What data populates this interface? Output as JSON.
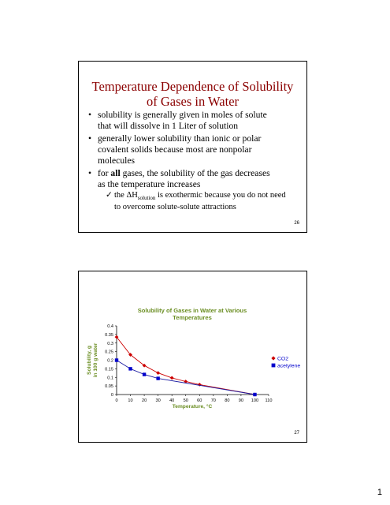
{
  "page_number": "1",
  "slide1": {
    "title_line1": "Temperature Dependence of Solubility",
    "title_line2": "of Gases in Water",
    "bullets": [
      {
        "line1": "solubility is generally given in moles of solute",
        "line2": "that will dissolve in 1 Liter of solution"
      },
      {
        "line1": "generally lower solubility than ionic or polar",
        "line2": "covalent solids because most are nonpolar",
        "line3": "molecules"
      },
      {
        "line1_pre": "for ",
        "line1_bold": "all",
        "line1_post": " gases, the solubility of the gas decreases",
        "line2": "as the temperature increases"
      }
    ],
    "sub_bullet": {
      "pre": "the ",
      "delta_h": "ΔH",
      "subscript": "solution",
      "post": " is exothermic because you do not need",
      "line2": "to overcome solute-solute attractions"
    },
    "slide_number": "26"
  },
  "slide2": {
    "slide_number": "27"
  },
  "chart_data": {
    "type": "line",
    "title": "Solubility of Gases in Water at Various Temperatures",
    "title_line1": "Solubility of Gases in Water at Various",
    "title_line2": "Temperatures",
    "xlabel": "Temperature, °C",
    "ylabel_line1": "Solubility, g",
    "ylabel_line2": "in 100 g water",
    "xlim": [
      0,
      110
    ],
    "ylim": [
      0,
      0.4
    ],
    "x_ticks": [
      "0",
      "10",
      "20",
      "30",
      "40",
      "50",
      "60",
      "70",
      "80",
      "90",
      "100",
      "110"
    ],
    "y_ticks": [
      "0",
      "0.05",
      "0.1",
      "0.15",
      "0.2",
      "0.25",
      "0.3",
      "0.35",
      "0.4"
    ],
    "grid": false,
    "legend_position": "right",
    "series": [
      {
        "name": "CO2",
        "color": "#cc0000",
        "marker": "diamond",
        "line_color": "#cc0000",
        "x": [
          0,
          10,
          20,
          30,
          40,
          50,
          60,
          100
        ],
        "y": [
          0.335,
          0.232,
          0.169,
          0.126,
          0.097,
          0.076,
          0.058,
          0
        ]
      },
      {
        "name": "acetylene",
        "color": "#0000cc",
        "marker": "square",
        "line_color": "#1a1aa0",
        "x": [
          0,
          10,
          20,
          30,
          100
        ],
        "y": [
          0.2,
          0.15,
          0.117,
          0.094,
          0
        ]
      }
    ]
  }
}
